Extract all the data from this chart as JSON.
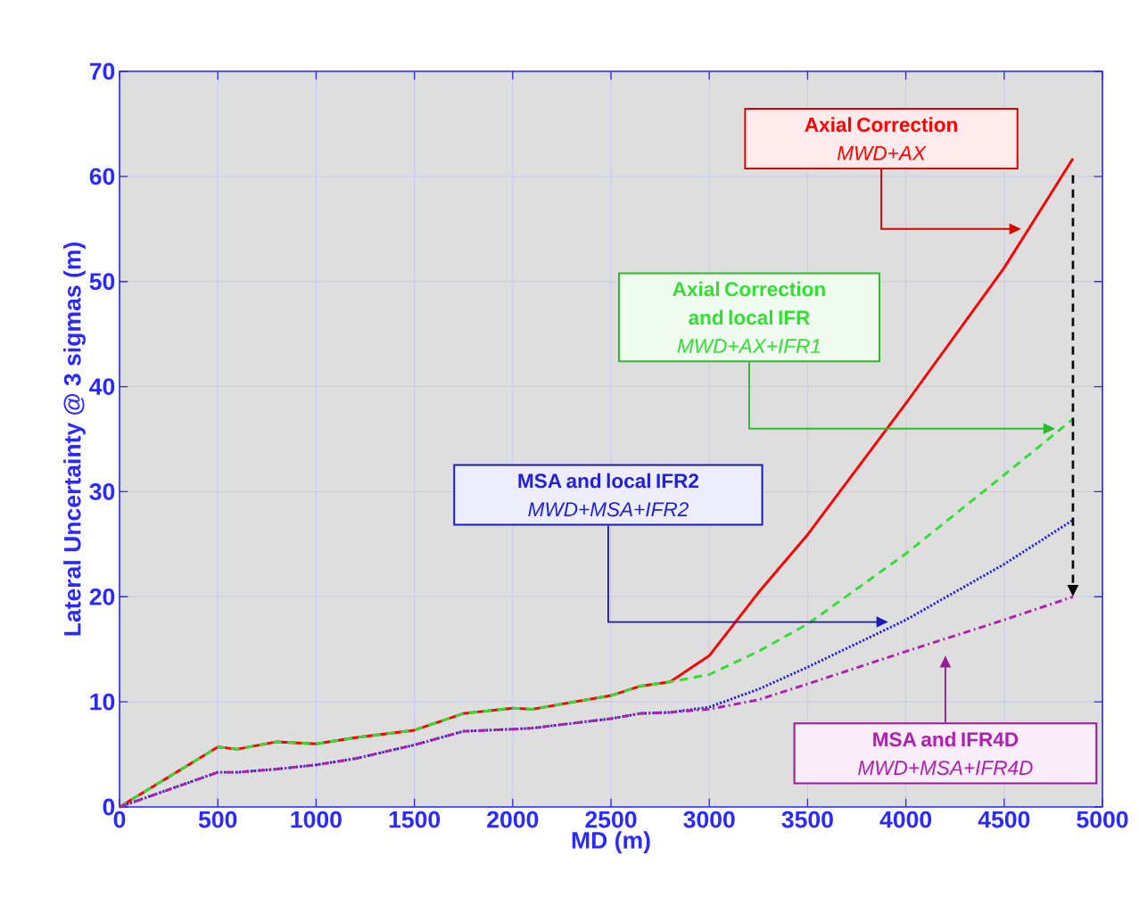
{
  "chart_data": {
    "type": "line",
    "xlabel": "MD (m)",
    "ylabel": "Lateral Uncertainty @ 3 sigmas (m)",
    "x": [
      0,
      500,
      600,
      800,
      1000,
      1200,
      1500,
      1750,
      2000,
      2100,
      2500,
      2650,
      2800,
      3000,
      3250,
      3500,
      4000,
      4500,
      4850
    ],
    "series": [
      {
        "name": "Axial Correction",
        "color": "#ff0000",
        "line_style": "solid",
        "values": [
          0,
          5.7,
          5.5,
          6.2,
          6.0,
          6.6,
          7.3,
          8.9,
          9.4,
          9.3,
          10.6,
          11.5,
          11.9,
          14.4,
          20.4,
          25.9,
          38.4,
          51.3,
          61.7
        ]
      },
      {
        "name": "Axial Correction and local IFR",
        "color": "#33dd33",
        "line_style": "dashed",
        "values": [
          0,
          5.7,
          5.5,
          6.2,
          6.0,
          6.6,
          7.3,
          8.9,
          9.4,
          9.3,
          10.6,
          11.5,
          11.9,
          12.6,
          14.8,
          17.4,
          24.1,
          31.6,
          36.9
        ]
      },
      {
        "name": "MSA and local IFR2",
        "color": "#2020dd",
        "line_style": "dotted",
        "values": [
          0,
          3.3,
          3.3,
          3.6,
          4.0,
          4.6,
          5.9,
          7.2,
          7.4,
          7.5,
          8.4,
          8.9,
          9.0,
          9.5,
          11.2,
          13.3,
          17.8,
          23.1,
          27.3
        ]
      },
      {
        "name": "MSA and IFR4D",
        "color": "#b020b0",
        "line_style": "dashdot",
        "values": [
          0,
          3.3,
          3.3,
          3.6,
          4.0,
          4.6,
          5.9,
          7.2,
          7.4,
          7.5,
          8.4,
          8.9,
          9.0,
          9.3,
          10.2,
          11.7,
          14.8,
          17.8,
          20.0
        ]
      }
    ],
    "annotations": [
      "MWD+AX",
      "MWD+AX+IFR1",
      "MWD+MSA+IFR2",
      "MWD+MSA+IFR4D"
    ],
    "xlim": [
      0,
      5000
    ],
    "ylim": [
      0,
      70
    ],
    "xticks": [
      0,
      500,
      1000,
      1500,
      2000,
      2500,
      3000,
      3500,
      4000,
      4500,
      5000
    ],
    "yticks": [
      0,
      10,
      20,
      30,
      40,
      50,
      60,
      70
    ],
    "grid": true
  }
}
